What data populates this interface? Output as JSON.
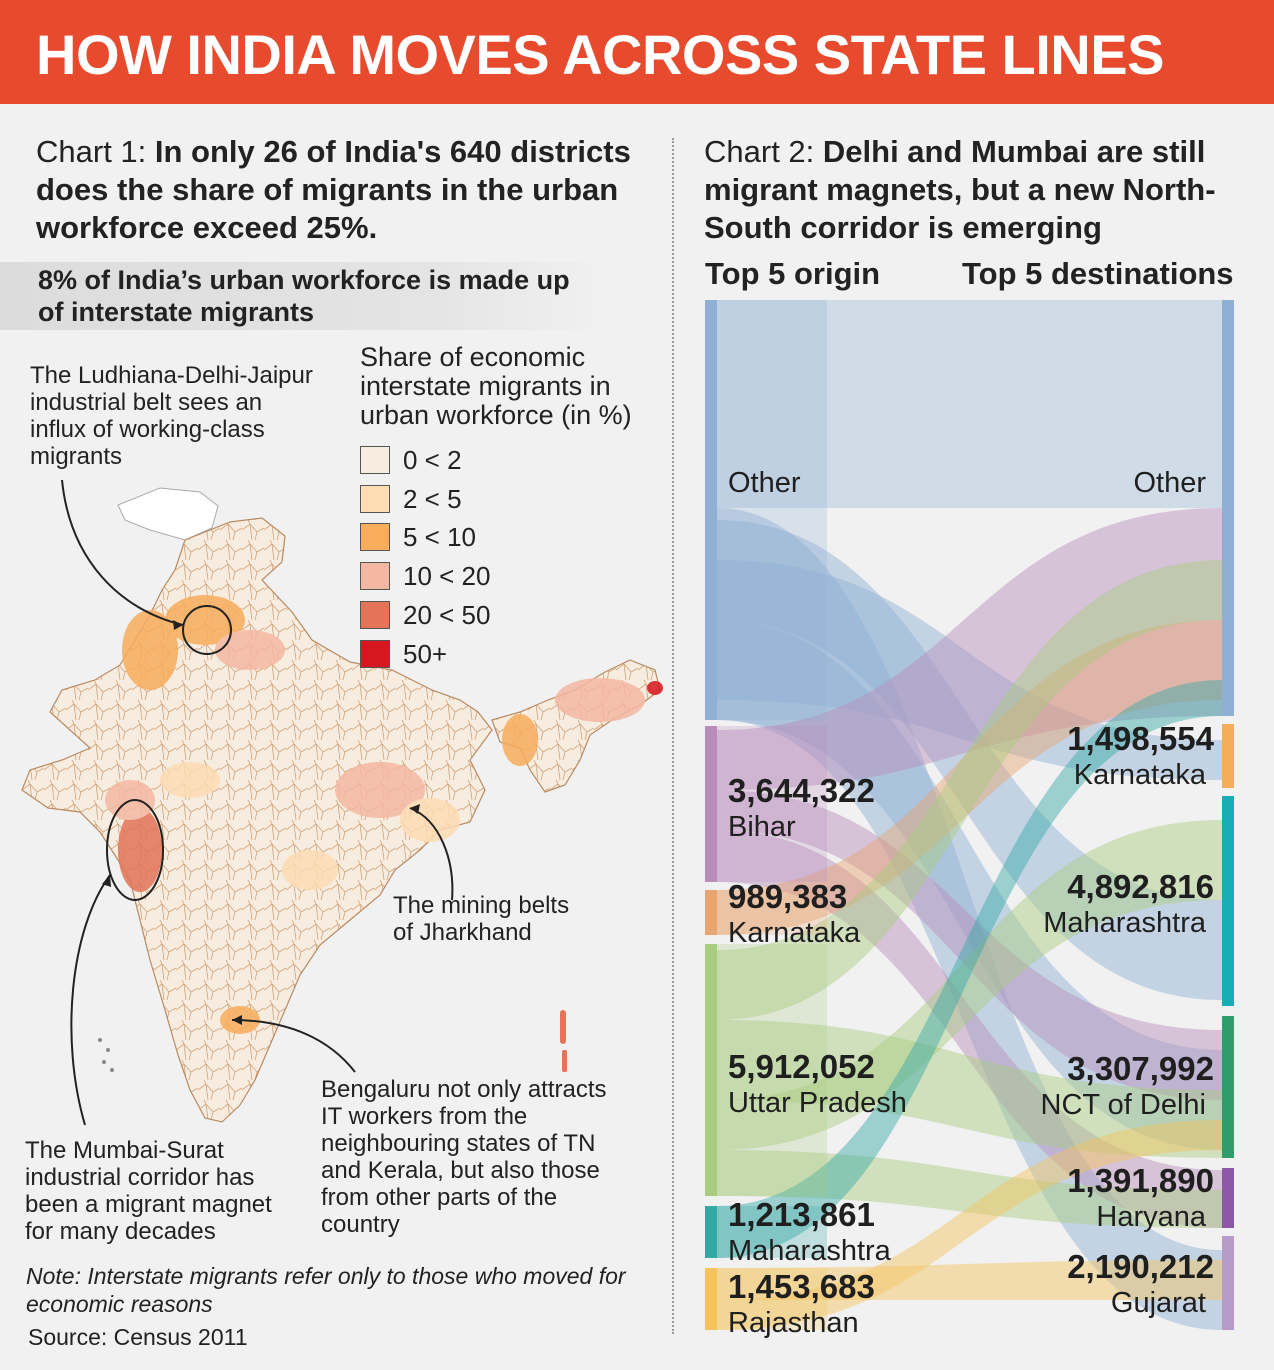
{
  "title": "HOW INDIA MOVES ACROSS STATE LINES",
  "chart1": {
    "lead": "Chart 1: ",
    "heading": "In only 26 of India's 640 districts does the share of migrants in the urban workforce exceed 25%.",
    "stat": "8% of India’s urban workforce is made up of interstate migrants",
    "legend_title": "Share of economic interstate migrants in urban workforce (in %)",
    "legend": [
      {
        "label": "0 < 2",
        "color": "#f7ece0"
      },
      {
        "label": "2 < 5",
        "color": "#fddcb4"
      },
      {
        "label": "5 < 10",
        "color": "#f8ad5c"
      },
      {
        "label": "10 < 20",
        "color": "#f4b8a2"
      },
      {
        "label": "20 < 50",
        "color": "#e37458"
      },
      {
        "label": "50+",
        "color": "#d7171f"
      }
    ],
    "annotations": {
      "ludhiana": "The Ludhiana-Delhi-Jaipur industrial belt sees an influx of working-class migrants",
      "mining": "The mining belts of Jharkhand",
      "mumbai": "The Mumbai-Surat industrial corridor has been a migrant magnet for many decades",
      "bengaluru": "Bengaluru not only attracts IT workers from the neighbouring states of TN and Kerala, but also those from other parts of the country"
    },
    "note": "Note: Interstate migrants refer only to those who moved for economic reasons",
    "source": "Source: Census 2011"
  },
  "chart2": {
    "lead": "Chart 2: ",
    "heading": "Delhi and Mumbai are still migrant magnets, but a new North-South corridor is emerging",
    "origin_header": "Top 5 origin",
    "destination_header": "Top 5 destinations"
  },
  "chart_data": {
    "type": "sankey",
    "origins": [
      {
        "name": "Other",
        "value": null,
        "color": "#8fb0d4"
      },
      {
        "name": "Bihar",
        "value": "3,644,322",
        "color": "#b98cba"
      },
      {
        "name": "Karnataka",
        "value": "989,383",
        "color": "#e8a570"
      },
      {
        "name": "Uttar Pradesh",
        "value": "5,912,052",
        "color": "#a9cc7f"
      },
      {
        "name": "Maharashtra",
        "value": "1,213,861",
        "color": "#33a9a6"
      },
      {
        "name": "Rajasthan",
        "value": "1,453,683",
        "color": "#f5c35a"
      }
    ],
    "destinations": [
      {
        "name": "Other",
        "value": null,
        "color": "#8fb0d4"
      },
      {
        "name": "Karnataka",
        "value": "1,498,554",
        "color": "#f6ad5b"
      },
      {
        "name": "Maharashtra",
        "value": "4,892,816",
        "color": "#18acb7"
      },
      {
        "name": "NCT of Delhi",
        "value": "3,307,992",
        "color": "#2f9c6b"
      },
      {
        "name": "Haryana",
        "value": "1,391,890",
        "color": "#8c59a8"
      },
      {
        "name": "Gujarat",
        "value": "2,190,212",
        "color": "#b79bc9"
      }
    ]
  }
}
